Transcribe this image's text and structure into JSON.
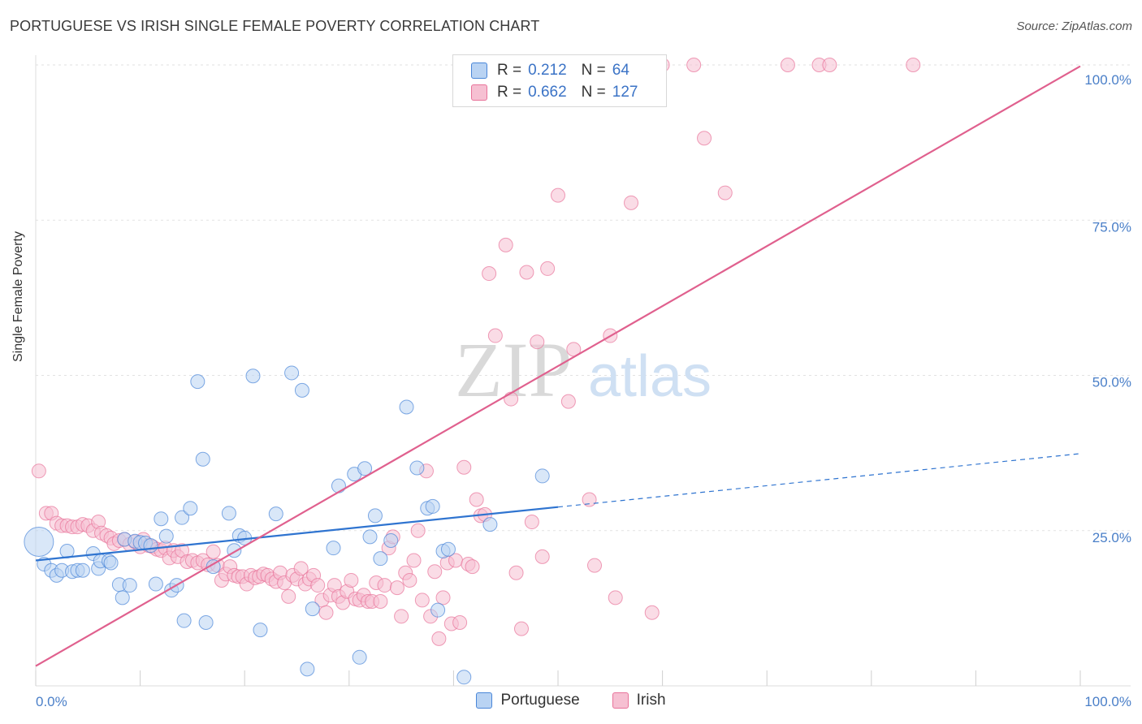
{
  "title": "PORTUGUESE VS IRISH SINGLE FEMALE POVERTY CORRELATION CHART",
  "source": "Source: ZipAtlas.com",
  "watermark": {
    "zip": "ZIP",
    "atlas": "atlas"
  },
  "legend_top": {
    "r_label": "R =",
    "n_label": "N =",
    "portuguese": {
      "r": "0.212",
      "n": "64"
    },
    "irish": {
      "r": "0.662",
      "n": "127"
    }
  },
  "colors": {
    "portuguese": "#4a86d8",
    "irish": "#e8739a",
    "portuguese_fill": "#b9d3f3",
    "irish_fill": "#f6c0d2"
  },
  "chart_data": {
    "type": "scatter",
    "title": "PORTUGUESE VS IRISH SINGLE FEMALE POVERTY CORRELATION CHART",
    "xlabel": "",
    "ylabel": "Single Female Poverty",
    "xlim": [
      0,
      100
    ],
    "ylim": [
      0,
      100
    ],
    "x_tick_labels": [
      "0.0%",
      "100.0%"
    ],
    "y_tick_labels": [
      "25.0%",
      "50.0%",
      "75.0%",
      "100.0%"
    ],
    "y_ticks": [
      25,
      50,
      75,
      100
    ],
    "grid": true,
    "legend_placement": "bottom",
    "series": [
      {
        "name": "Portuguese",
        "r": 0.212,
        "n": 64,
        "trend": {
          "x0": 0,
          "y0": 20.2,
          "x1": 50,
          "y1": 28.8,
          "dash_to_x": 100,
          "dash_to_y": 37.4
        },
        "points": [
          [
            0.3,
            23.2
          ],
          [
            0.8,
            19.6
          ],
          [
            1.5,
            18.6
          ],
          [
            2.0,
            17.8
          ],
          [
            2.5,
            18.6
          ],
          [
            3.0,
            21.7
          ],
          [
            3.5,
            18.4
          ],
          [
            4.0,
            18.6
          ],
          [
            4.5,
            18.6
          ],
          [
            5.5,
            21.3
          ],
          [
            6.0,
            18.9
          ],
          [
            6.2,
            20.1
          ],
          [
            7.0,
            20.1
          ],
          [
            7.2,
            19.8
          ],
          [
            8.0,
            16.3
          ],
          [
            8.3,
            14.2
          ],
          [
            8.5,
            23.6
          ],
          [
            9.0,
            16.2
          ],
          [
            9.5,
            23.3
          ],
          [
            10.0,
            23.1
          ],
          [
            10.5,
            23.0
          ],
          [
            11.0,
            22.6
          ],
          [
            11.5,
            16.4
          ],
          [
            12.0,
            26.9
          ],
          [
            12.5,
            24.1
          ],
          [
            13.0,
            15.4
          ],
          [
            13.5,
            16.2
          ],
          [
            14.0,
            27.1
          ],
          [
            14.2,
            10.5
          ],
          [
            14.8,
            28.6
          ],
          [
            15.5,
            49.0
          ],
          [
            16.0,
            36.5
          ],
          [
            16.3,
            10.2
          ],
          [
            17.0,
            19.2
          ],
          [
            18.5,
            27.8
          ],
          [
            19.0,
            21.8
          ],
          [
            19.5,
            24.2
          ],
          [
            20.0,
            23.8
          ],
          [
            20.8,
            49.9
          ],
          [
            21.5,
            9.0
          ],
          [
            23.0,
            27.7
          ],
          [
            24.5,
            50.4
          ],
          [
            25.5,
            47.6
          ],
          [
            26.0,
            2.7
          ],
          [
            26.5,
            12.4
          ],
          [
            28.5,
            22.2
          ],
          [
            29.0,
            32.2
          ],
          [
            30.5,
            34.1
          ],
          [
            31.0,
            4.6
          ],
          [
            31.5,
            35.0
          ],
          [
            32.0,
            24.0
          ],
          [
            32.5,
            27.4
          ],
          [
            33.0,
            20.5
          ],
          [
            34.0,
            23.4
          ],
          [
            35.5,
            44.9
          ],
          [
            36.5,
            35.1
          ],
          [
            37.5,
            28.6
          ],
          [
            38.0,
            28.9
          ],
          [
            38.5,
            12.2
          ],
          [
            39.0,
            21.7
          ],
          [
            39.5,
            22.0
          ],
          [
            41.0,
            1.4
          ],
          [
            43.5,
            26.0
          ],
          [
            48.5,
            33.8
          ]
        ]
      },
      {
        "name": "Irish",
        "r": 0.662,
        "n": 127,
        "trend": {
          "x0": 0,
          "y0": 3.2,
          "x1": 100,
          "y1": 99.8
        },
        "points": [
          [
            0.3,
            34.6
          ],
          [
            1.0,
            27.8
          ],
          [
            1.5,
            27.8
          ],
          [
            2.0,
            26.2
          ],
          [
            2.5,
            25.8
          ],
          [
            3.0,
            25.8
          ],
          [
            3.5,
            25.6
          ],
          [
            4.0,
            25.6
          ],
          [
            4.5,
            26.0
          ],
          [
            5.0,
            25.8
          ],
          [
            5.5,
            25.0
          ],
          [
            6.0,
            26.4
          ],
          [
            6.3,
            24.6
          ],
          [
            6.8,
            24.2
          ],
          [
            7.2,
            23.8
          ],
          [
            7.5,
            22.9
          ],
          [
            8.0,
            23.4
          ],
          [
            8.5,
            23.6
          ],
          [
            9.0,
            22.8
          ],
          [
            9.5,
            23.2
          ],
          [
            10.0,
            22.4
          ],
          [
            10.3,
            23.6
          ],
          [
            10.8,
            22.6
          ],
          [
            11.2,
            22.4
          ],
          [
            11.6,
            22.0
          ],
          [
            12.0,
            21.8
          ],
          [
            12.4,
            22.2
          ],
          [
            12.8,
            20.6
          ],
          [
            13.2,
            21.8
          ],
          [
            13.6,
            20.8
          ],
          [
            14.0,
            21.8
          ],
          [
            14.5,
            20.0
          ],
          [
            15.0,
            20.2
          ],
          [
            15.5,
            19.8
          ],
          [
            16.0,
            20.2
          ],
          [
            16.5,
            19.5
          ],
          [
            17.0,
            21.6
          ],
          [
            17.4,
            19.4
          ],
          [
            17.8,
            17.0
          ],
          [
            18.2,
            18.0
          ],
          [
            18.6,
            19.2
          ],
          [
            19.0,
            17.8
          ],
          [
            19.4,
            17.6
          ],
          [
            19.8,
            17.6
          ],
          [
            20.2,
            16.4
          ],
          [
            20.6,
            17.8
          ],
          [
            21.0,
            17.4
          ],
          [
            21.4,
            17.6
          ],
          [
            21.8,
            18.0
          ],
          [
            22.2,
            17.8
          ],
          [
            22.6,
            17.2
          ],
          [
            23.0,
            16.8
          ],
          [
            23.4,
            18.2
          ],
          [
            23.8,
            16.6
          ],
          [
            24.2,
            14.4
          ],
          [
            24.6,
            17.8
          ],
          [
            25.0,
            17.2
          ],
          [
            25.4,
            18.9
          ],
          [
            25.8,
            16.4
          ],
          [
            26.2,
            17.2
          ],
          [
            26.6,
            17.8
          ],
          [
            27.0,
            16.2
          ],
          [
            27.4,
            13.8
          ],
          [
            27.8,
            11.8
          ],
          [
            28.2,
            14.6
          ],
          [
            28.6,
            16.2
          ],
          [
            29.0,
            14.4
          ],
          [
            29.4,
            13.4
          ],
          [
            29.8,
            15.2
          ],
          [
            30.2,
            17.0
          ],
          [
            30.6,
            14.0
          ],
          [
            31.0,
            13.8
          ],
          [
            31.4,
            14.6
          ],
          [
            31.8,
            13.6
          ],
          [
            32.2,
            13.6
          ],
          [
            32.6,
            16.6
          ],
          [
            33.0,
            13.6
          ],
          [
            33.4,
            16.2
          ],
          [
            33.8,
            22.2
          ],
          [
            34.2,
            24.0
          ],
          [
            34.6,
            15.8
          ],
          [
            35.0,
            11.2
          ],
          [
            35.4,
            18.2
          ],
          [
            35.8,
            17.0
          ],
          [
            36.2,
            20.2
          ],
          [
            36.6,
            25.0
          ],
          [
            37.0,
            13.8
          ],
          [
            37.4,
            34.6
          ],
          [
            37.8,
            11.2
          ],
          [
            38.2,
            18.4
          ],
          [
            38.6,
            7.6
          ],
          [
            39.0,
            14.2
          ],
          [
            39.4,
            19.8
          ],
          [
            39.8,
            10.0
          ],
          [
            40.2,
            20.2
          ],
          [
            40.6,
            10.2
          ],
          [
            41.0,
            35.2
          ],
          [
            41.4,
            19.6
          ],
          [
            41.8,
            19.2
          ],
          [
            42.2,
            30.0
          ],
          [
            42.6,
            27.4
          ],
          [
            43.0,
            27.6
          ],
          [
            43.4,
            66.4
          ],
          [
            44.0,
            56.4
          ],
          [
            45.0,
            71.0
          ],
          [
            45.5,
            46.2
          ],
          [
            46.0,
            18.2
          ],
          [
            46.5,
            9.2
          ],
          [
            47.0,
            66.6
          ],
          [
            47.5,
            26.4
          ],
          [
            48.0,
            55.4
          ],
          [
            48.5,
            20.8
          ],
          [
            49.0,
            67.2
          ],
          [
            49.5,
            100
          ],
          [
            50.0,
            79.0
          ],
          [
            51.0,
            45.8
          ],
          [
            51.5,
            54.2
          ],
          [
            52.0,
            100
          ],
          [
            53.0,
            30.0
          ],
          [
            53.5,
            19.4
          ],
          [
            55.0,
            56.4
          ],
          [
            55.5,
            14.2
          ],
          [
            57.0,
            77.8
          ],
          [
            58.0,
            100
          ],
          [
            59.0,
            11.8
          ],
          [
            60.0,
            100
          ],
          [
            63.0,
            100
          ],
          [
            64.0,
            88.2
          ],
          [
            66.0,
            79.4
          ],
          [
            72.0,
            100
          ],
          [
            75.0,
            100
          ],
          [
            76.0,
            100
          ],
          [
            84.0,
            100
          ]
        ]
      }
    ]
  }
}
